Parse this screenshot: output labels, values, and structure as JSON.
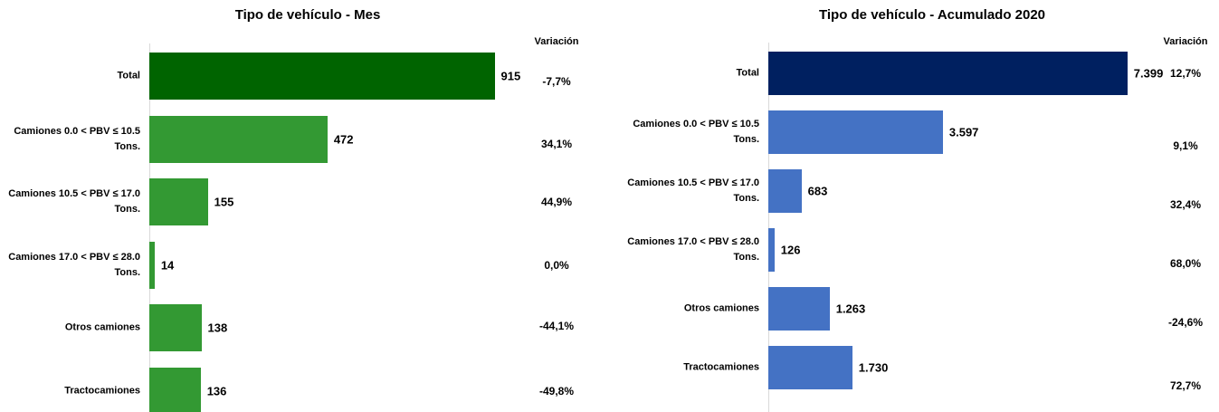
{
  "chart_data": [
    {
      "type": "bar",
      "orientation": "horizontal",
      "title": "Tipo de vehículo - Mes",
      "categories": [
        "Total",
        "Camiones 0.0 < PBV ≤ 10.5 Tons.",
        "Camiones 10.5 < PBV ≤ 17.0 Tons.",
        "Camiones 17.0 < PBV ≤ 28.0 Tons.",
        "Otros camiones",
        "Tractocamiones"
      ],
      "values": [
        915,
        472,
        155,
        14,
        138,
        136
      ],
      "colors": [
        "#006400",
        "#339933",
        "#339933",
        "#339933",
        "#339933",
        "#339933"
      ],
      "xlim": [
        0,
        1000
      ],
      "variation_header": "Variación",
      "variation_labels": [
        "-7,7%",
        "34,1%",
        "44,9%",
        "0,0%",
        "-44,1%",
        "-49,8%"
      ]
    },
    {
      "type": "bar",
      "orientation": "horizontal",
      "title": "Tipo de vehículo - Acumulado 2020",
      "categories": [
        "Total",
        "Camiones 0.0 < PBV ≤ 10.5 Tons.",
        "Camiones 10.5 < PBV ≤ 17.0 Tons.",
        "Camiones 17.0 < PBV ≤ 28.0 Tons.",
        "Otros camiones",
        "Tractocamiones"
      ],
      "values": [
        7399,
        3597,
        683,
        126,
        1263,
        1730
      ],
      "value_labels": [
        "7.399",
        "3.597",
        "683",
        "126",
        "1.263",
        "1.730"
      ],
      "colors": [
        "#002060",
        "#4472c4",
        "#4472c4",
        "#4472c4",
        "#4472c4",
        "#4472c4"
      ],
      "xlim": [
        0,
        8000
      ],
      "variation_header": "Variación",
      "variation_labels": [
        "12,7%",
        "9,1%",
        "32,4%",
        "68,0%",
        "-24,6%",
        "72,7%"
      ]
    }
  ]
}
